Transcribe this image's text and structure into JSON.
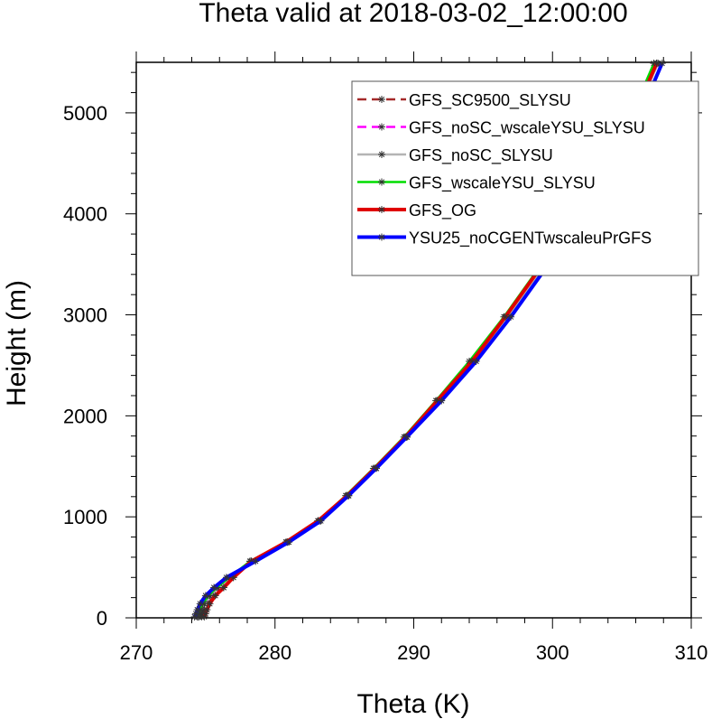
{
  "chart_data": {
    "type": "line",
    "title": "Theta valid at 2018-03-02_12:00:00",
    "xlabel": "Theta (K)",
    "ylabel": "Height (m)",
    "xlim": [
      270,
      310
    ],
    "ylim": [
      0,
      5500
    ],
    "xticks": [
      270,
      280,
      290,
      300,
      310
    ],
    "yticks": [
      0,
      1000,
      2000,
      3000,
      4000,
      5000
    ],
    "grid": false,
    "legend_position": "top-right",
    "series": [
      {
        "name": "GFS_SC9500_SLYSU",
        "color": "#a52a2a",
        "dash": "dashed",
        "points": [
          [
            274.7,
            10
          ],
          [
            274.8,
            40
          ],
          [
            274.9,
            80
          ],
          [
            275.2,
            140
          ],
          [
            275.6,
            220
          ],
          [
            276.3,
            300
          ],
          [
            277.0,
            400
          ],
          [
            278.2,
            560
          ],
          [
            280.8,
            750
          ],
          [
            283.1,
            960
          ],
          [
            285.2,
            1210
          ],
          [
            287.2,
            1480
          ],
          [
            289.4,
            1790
          ],
          [
            291.7,
            2150
          ],
          [
            294.2,
            2540
          ],
          [
            296.6,
            2980
          ],
          [
            299.2,
            3480
          ],
          [
            301.9,
            4040
          ],
          [
            304.4,
            4610
          ],
          [
            306.5,
            5170
          ],
          [
            307.5,
            5490
          ]
        ]
      },
      {
        "name": "GFS_noSC_wscaleYSU_SLYSU",
        "color": "#ff00ff",
        "dash": "dashed",
        "points": [
          [
            274.5,
            10
          ],
          [
            274.6,
            40
          ],
          [
            274.7,
            80
          ],
          [
            274.9,
            140
          ],
          [
            275.3,
            220
          ],
          [
            275.9,
            300
          ],
          [
            276.8,
            400
          ],
          [
            278.3,
            560
          ],
          [
            280.9,
            750
          ],
          [
            283.2,
            960
          ],
          [
            285.3,
            1210
          ],
          [
            287.3,
            1480
          ],
          [
            289.5,
            1790
          ],
          [
            291.8,
            2150
          ],
          [
            294.3,
            2540
          ],
          [
            296.8,
            2980
          ],
          [
            299.4,
            3480
          ],
          [
            302.0,
            4040
          ],
          [
            304.5,
            4610
          ],
          [
            306.6,
            5170
          ],
          [
            307.6,
            5490
          ]
        ]
      },
      {
        "name": "GFS_noSC_SLYSU",
        "color": "#b4b4b4",
        "dash": "solid",
        "points": [
          [
            274.5,
            10
          ],
          [
            274.6,
            40
          ],
          [
            274.7,
            80
          ],
          [
            274.9,
            140
          ],
          [
            275.3,
            220
          ],
          [
            275.9,
            300
          ],
          [
            276.8,
            400
          ],
          [
            278.3,
            560
          ],
          [
            280.9,
            750
          ],
          [
            283.2,
            960
          ],
          [
            285.3,
            1210
          ],
          [
            287.3,
            1480
          ],
          [
            289.5,
            1790
          ],
          [
            291.8,
            2150
          ],
          [
            294.3,
            2540
          ],
          [
            296.8,
            2980
          ],
          [
            299.4,
            3480
          ],
          [
            302.0,
            4040
          ],
          [
            304.5,
            4610
          ],
          [
            306.6,
            5170
          ],
          [
            307.6,
            5490
          ]
        ]
      },
      {
        "name": "GFS_wscaleYSU_SLYSU",
        "color": "#00dd00",
        "dash": "solid",
        "points": [
          [
            274.4,
            10
          ],
          [
            274.5,
            40
          ],
          [
            274.6,
            80
          ],
          [
            274.8,
            140
          ],
          [
            275.2,
            220
          ],
          [
            275.8,
            300
          ],
          [
            276.7,
            400
          ],
          [
            278.2,
            560
          ],
          [
            280.8,
            750
          ],
          [
            283.1,
            960
          ],
          [
            285.1,
            1210
          ],
          [
            287.1,
            1480
          ],
          [
            289.3,
            1790
          ],
          [
            291.6,
            2150
          ],
          [
            294.0,
            2540
          ],
          [
            296.5,
            2980
          ],
          [
            299.1,
            3480
          ],
          [
            301.7,
            4040
          ],
          [
            304.2,
            4610
          ],
          [
            306.3,
            5170
          ],
          [
            307.3,
            5490
          ]
        ]
      },
      {
        "name": "GFS_OG",
        "color": "#e00000",
        "dash": "solid",
        "points": [
          [
            274.9,
            10
          ],
          [
            275.0,
            40
          ],
          [
            275.1,
            80
          ],
          [
            275.3,
            140
          ],
          [
            275.7,
            220
          ],
          [
            276.3,
            300
          ],
          [
            277.0,
            400
          ],
          [
            278.3,
            560
          ],
          [
            280.8,
            750
          ],
          [
            283.1,
            960
          ],
          [
            285.2,
            1210
          ],
          [
            287.2,
            1480
          ],
          [
            289.4,
            1790
          ],
          [
            291.7,
            2150
          ],
          [
            294.2,
            2540
          ],
          [
            296.6,
            2980
          ],
          [
            299.2,
            3480
          ],
          [
            301.9,
            4040
          ],
          [
            304.4,
            4610
          ],
          [
            306.5,
            5170
          ],
          [
            307.5,
            5490
          ]
        ]
      },
      {
        "name": "YSU25_noCGENTwscaleuPrGFS",
        "color": "#0000ff",
        "dash": "solid",
        "points": [
          [
            274.2,
            10
          ],
          [
            274.3,
            40
          ],
          [
            274.4,
            80
          ],
          [
            274.6,
            140
          ],
          [
            275.0,
            220
          ],
          [
            275.6,
            300
          ],
          [
            276.5,
            400
          ],
          [
            278.6,
            560
          ],
          [
            281.0,
            750
          ],
          [
            283.3,
            960
          ],
          [
            285.3,
            1210
          ],
          [
            287.3,
            1480
          ],
          [
            289.5,
            1790
          ],
          [
            292.0,
            2150
          ],
          [
            294.5,
            2540
          ],
          [
            297.0,
            2980
          ],
          [
            299.6,
            3480
          ],
          [
            302.2,
            4040
          ],
          [
            304.7,
            4610
          ],
          [
            306.9,
            5170
          ],
          [
            307.9,
            5490
          ]
        ]
      }
    ]
  }
}
